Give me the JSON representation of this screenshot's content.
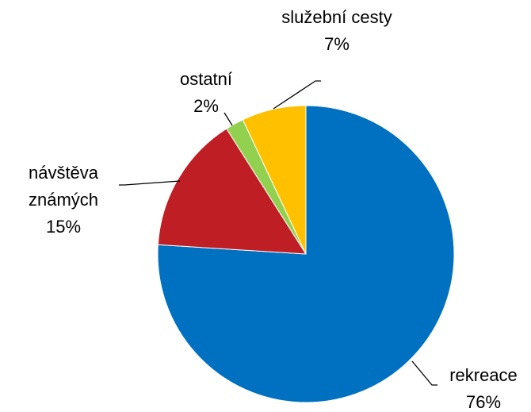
{
  "chart_data": {
    "type": "pie",
    "categories": [
      "rekreace",
      "návštěva známých",
      "ostatní",
      "služební cesty"
    ],
    "values": [
      76,
      15,
      2,
      7
    ],
    "value_labels": [
      "76%",
      "15%",
      "2%",
      "7%"
    ],
    "colors": [
      "#0070c0",
      "#be1e24",
      "#92d050",
      "#ffc000"
    ]
  }
}
